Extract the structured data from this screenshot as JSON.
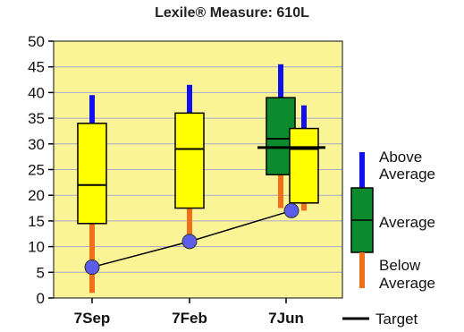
{
  "chart_data": {
    "type": "box",
    "title": "Lexile® Measure: 610L",
    "categories": [
      "7Sep",
      "7Feb",
      "7Jun"
    ],
    "ylim": [
      0,
      50
    ],
    "yticks": [
      0,
      5,
      10,
      15,
      20,
      25,
      30,
      35,
      40,
      45,
      50
    ],
    "grid": true,
    "boxes": [
      {
        "category": "7Sep",
        "color": "#ffff00",
        "whisker_low": 1,
        "q1": 14.5,
        "median": 22,
        "q3": 34,
        "whisker_high": 39.5
      },
      {
        "category": "7Feb",
        "color": "#ffff00",
        "whisker_low": 12,
        "q1": 17.5,
        "median": 29,
        "q3": 36,
        "whisker_high": 41.5
      },
      {
        "category": "7Jun",
        "group": "norm",
        "color": "#0c8a2e",
        "whisker_low": 17.5,
        "q1": 24,
        "median": 31,
        "q3": 39,
        "whisker_high": 45.5
      },
      {
        "category": "7Jun",
        "group": "student",
        "color": "#ffff00",
        "whisker_low": 17,
        "q1": 18.5,
        "median": 29,
        "q3": 33,
        "whisker_high": 37.5
      }
    ],
    "line_series": [
      {
        "x": [
          "7Sep",
          "7Feb",
          "7Jun"
        ],
        "values": [
          6,
          11,
          17
        ],
        "color": "#5b5ce8"
      }
    ],
    "target": {
      "category": "7Jun",
      "value": 29.3
    },
    "legend": {
      "position": "right",
      "above": [
        "Above",
        "Average"
      ],
      "average": "Average",
      "below": [
        "Below",
        "Average"
      ],
      "target": "Target"
    },
    "colors": {
      "plot_bg": "#fbf497",
      "grid": "#a8a8c8",
      "above": "#1010f0",
      "below": "#f0701a",
      "avg_box": "#0c8a2e",
      "student_box": "#ffff00"
    }
  }
}
